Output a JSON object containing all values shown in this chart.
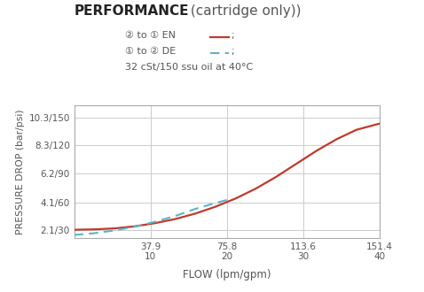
{
  "title_bold": "PERFORMANCE",
  "title_normal": " (cartridge only))",
  "legend_line1_text": "② to ① EN",
  "legend_line2_text": "① to ② DE",
  "subtitle": "32 cSt/150 ssu oil at 40°C",
  "xlabel": "FLOW (lpm/gpm)",
  "ylabel": "PRESSURE DROP (bar/psi)",
  "x_ticks_lpm": [
    37.9,
    75.8,
    113.6,
    151.4
  ],
  "x_ticks_gpm": [
    "10",
    "20",
    "30",
    "40"
  ],
  "y_ticks_bar": [
    2.1,
    4.1,
    6.2,
    8.3,
    10.3
  ],
  "y_ticks_psi": [
    "30",
    "60",
    "90",
    "120",
    "150"
  ],
  "xlim": [
    0,
    151.4
  ],
  "ylim": [
    1.5,
    11.2
  ],
  "red_color": "#c0392b",
  "cyan_color": "#5ab4c5",
  "grid_color": "#cccccc",
  "bg_color": "#ffffff",
  "text_color": "#555555",
  "red_x": [
    0,
    10,
    20,
    30,
    40,
    50,
    60,
    70,
    80,
    90,
    100,
    110,
    120,
    130,
    140,
    151.4
  ],
  "red_y": [
    2.1,
    2.13,
    2.2,
    2.35,
    2.58,
    2.88,
    3.28,
    3.78,
    4.38,
    5.1,
    5.95,
    6.9,
    7.85,
    8.7,
    9.4,
    9.85
  ],
  "cyan_x": [
    0,
    10,
    20,
    30,
    40,
    50,
    60,
    70,
    75.8
  ],
  "cyan_y": [
    1.72,
    1.85,
    2.05,
    2.32,
    2.68,
    3.1,
    3.62,
    4.05,
    4.28
  ]
}
